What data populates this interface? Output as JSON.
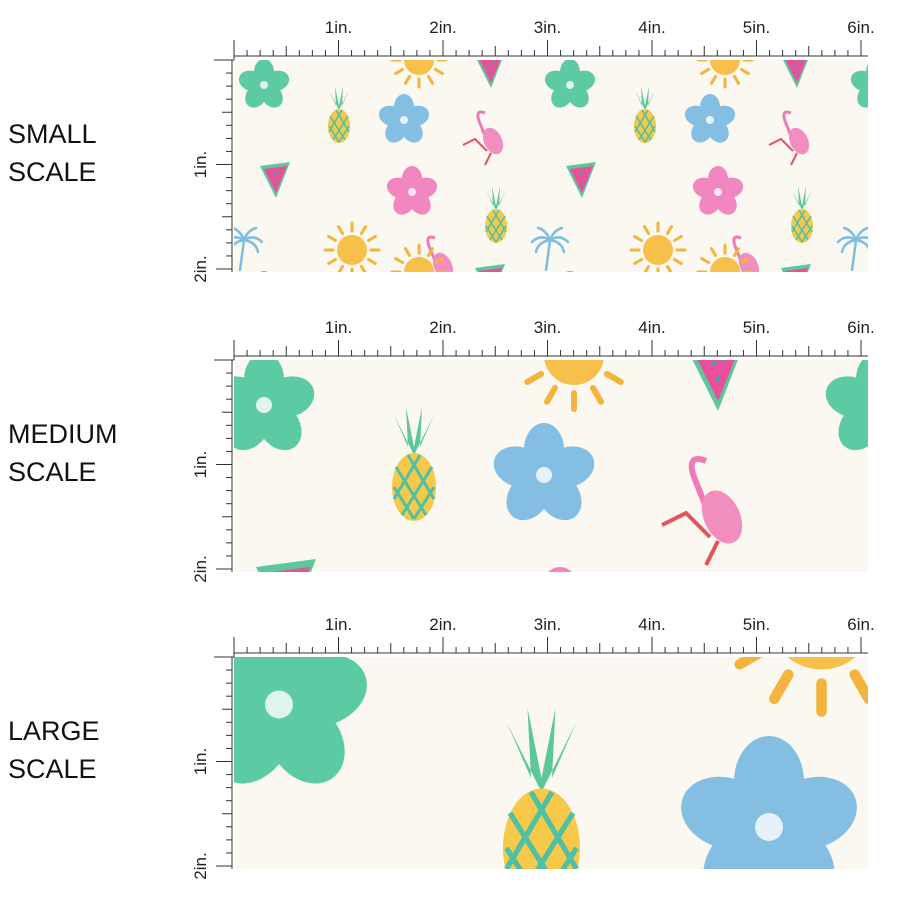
{
  "panels": [
    {
      "title": [
        "SMALL",
        "SCALE"
      ],
      "top_ruler": [
        "1in.",
        "2in.",
        "3in.",
        "4in.",
        "5in.",
        "6in."
      ],
      "side_ruler": [
        "1in.",
        "2in."
      ]
    },
    {
      "title": [
        "MEDIUM",
        "SCALE"
      ],
      "top_ruler": [
        "1in.",
        "2in.",
        "3in.",
        "4in.",
        "5in.",
        "6in."
      ],
      "side_ruler": [
        "1in.",
        "2in."
      ]
    },
    {
      "title": [
        "LARGE",
        "SCALE"
      ],
      "top_ruler": [
        "1in.",
        "2in.",
        "3in.",
        "4in.",
        "5in.",
        "6in."
      ],
      "side_ruler": [
        "1in.",
        "2in."
      ]
    }
  ]
}
